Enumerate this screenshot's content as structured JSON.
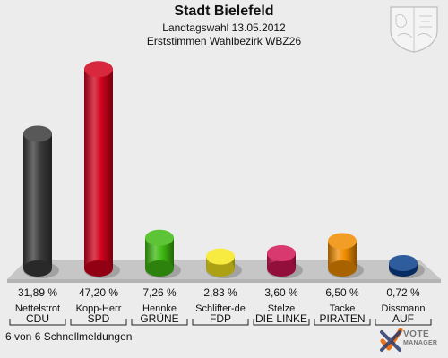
{
  "header": {
    "title": "Stadt Bielefeld",
    "subtitle1": "Landtagswahl 13.05.2012",
    "subtitle2": "Erststimmen Wahlbezirk WBZ26"
  },
  "footer": {
    "status": "6 von 6 Schnellmeldungen",
    "logo_line1": "VOTE",
    "logo_line2": "MANAGER"
  },
  "chart_data": {
    "type": "bar",
    "categories": [
      "CDU",
      "SPD",
      "GRÜNE",
      "FDP",
      "DIE LINKE",
      "PIRATEN",
      "AUF"
    ],
    "candidates": [
      "Nettelstrot",
      "Kopp-Herr",
      "Hennke",
      "Schlifter-de",
      "Stelze",
      "Tacke",
      "Dissmann"
    ],
    "values": [
      31.89,
      47.2,
      7.26,
      2.83,
      3.6,
      6.5,
      0.72
    ],
    "value_labels": [
      "31,89 %",
      "47,20 %",
      "7,26 %",
      "2,83 %",
      "3,60 %",
      "6,50 %",
      "0,72 %"
    ],
    "colors": [
      "#3a3a3a",
      "#d0021b",
      "#3fb911",
      "#f5e61e",
      "#d11655",
      "#f08c00",
      "#0a3f8a"
    ],
    "title": "Stadt Bielefeld",
    "ylim": [
      0,
      50
    ],
    "grid": false,
    "legend": "none"
  }
}
